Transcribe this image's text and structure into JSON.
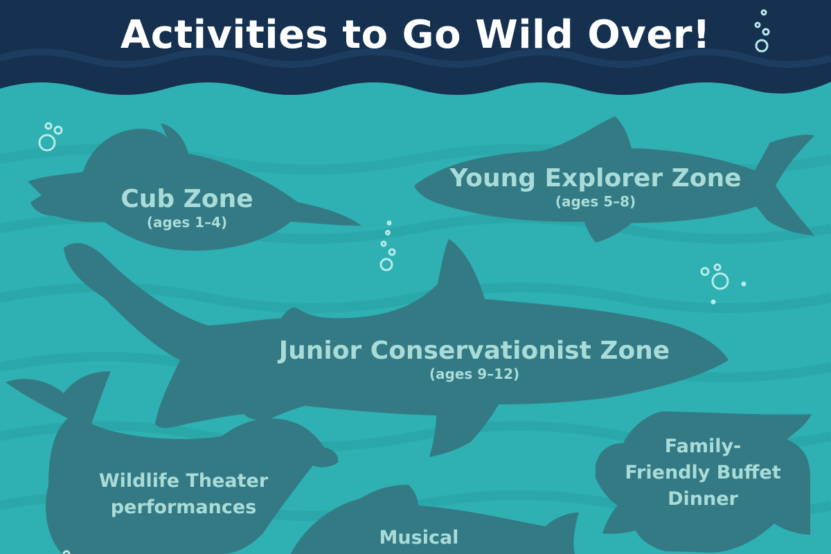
{
  "header": {
    "title": "Activities to Go Wild Over!"
  },
  "colors": {
    "header_bg": "#16304f",
    "water": "#2fb0b2",
    "silhouette": "#337a84",
    "label_text": "#a9dcd8",
    "title_text": "#ffffff",
    "bubble": "#b7ece8"
  },
  "zones": [
    {
      "animal": "penguin",
      "name": "Cub Zone",
      "ages": "(ages 1–4)"
    },
    {
      "animal": "shark",
      "name": "Young Explorer Zone",
      "ages": "(ages 5–8)"
    },
    {
      "animal": "shark",
      "name": "Junior Conservationist Zone",
      "ages": "(ages 9–12)"
    }
  ],
  "activities": [
    {
      "animal": "seal",
      "lines": [
        "Wildlife Theater",
        "performances"
      ]
    },
    {
      "animal": "sea-turtle",
      "lines": [
        "Family-",
        "Friendly Buffet",
        "Dinner"
      ]
    },
    {
      "animal": "fish",
      "lines": [
        "Musical"
      ]
    }
  ]
}
